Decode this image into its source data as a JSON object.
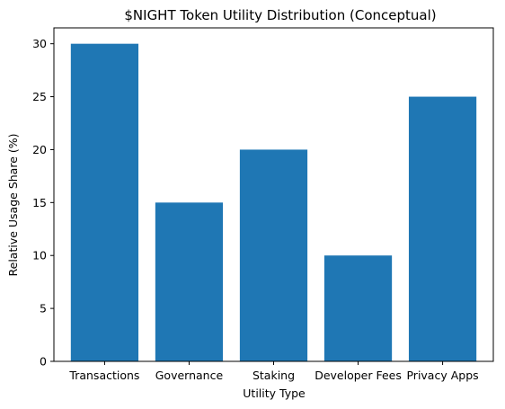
{
  "chart_data": {
    "type": "bar",
    "title": "$NIGHT Token Utility Distribution (Conceptual)",
    "xlabel": "Utility Type",
    "ylabel": "Relative Usage Share (%)",
    "categories": [
      "Transactions",
      "Governance",
      "Staking",
      "Developer Fees",
      "Privacy Apps"
    ],
    "values": [
      30,
      15,
      20,
      10,
      25
    ],
    "ylim": [
      0,
      31.5
    ],
    "yticks": [
      0,
      5,
      10,
      15,
      20,
      25,
      30
    ],
    "grid": false,
    "bar_color": "#1f77b4"
  }
}
